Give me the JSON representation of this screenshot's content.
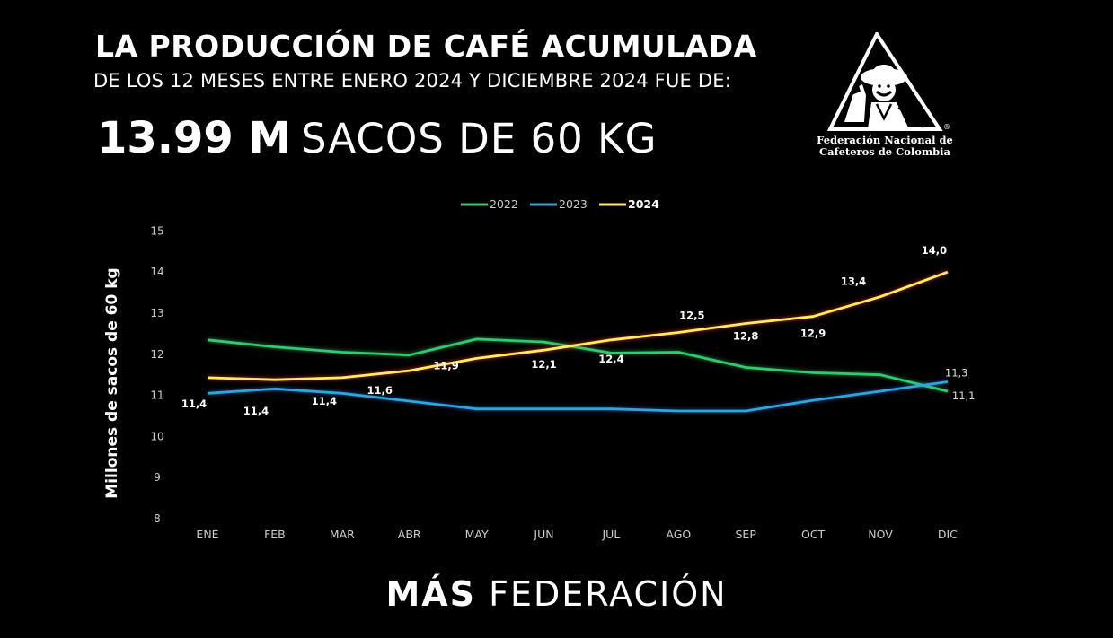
{
  "header": {
    "title": "LA PRODUCCIÓN DE CAFÉ ACUMULADA",
    "subtitle": "DE LOS 12 MESES ENTRE ENERO 2024 Y DICIEMBRE 2024 FUE DE:",
    "big_value": "13.99 M",
    "big_unit": "SACOS DE 60 KG"
  },
  "logo": {
    "line1": "Federación Nacional de",
    "line2": "Cafeteros de Colombia",
    "mark": "®"
  },
  "footer": {
    "bold": "MÁS",
    "light": "FEDERACIÓN"
  },
  "colors": {
    "2022": "#2ecc71",
    "2023": "#2aa7e0",
    "2024": "#ffee58",
    "background": "#000000"
  },
  "chart_data": {
    "type": "line",
    "ylabel": "Millones de sacos de 60 kg",
    "ylim": [
      8,
      15
    ],
    "yticks": [
      8,
      9,
      10,
      11,
      12,
      13,
      14,
      15
    ],
    "categories": [
      "ENE",
      "FEB",
      "MAR",
      "ABR",
      "MAY",
      "JUN",
      "JUL",
      "AGO",
      "SEP",
      "OCT",
      "NOV",
      "DIC"
    ],
    "legend_position": "top-center",
    "grid": false,
    "series": [
      {
        "name": "2022",
        "values": [
          12.35,
          12.18,
          12.05,
          11.98,
          12.37,
          12.3,
          12.03,
          12.05,
          11.68,
          11.55,
          11.5,
          11.1
        ],
        "labels": [
          "",
          "",
          "",
          "",
          "",
          "",
          "",
          "",
          "",
          "",
          "",
          "11,1"
        ]
      },
      {
        "name": "2023",
        "values": [
          11.05,
          11.16,
          11.05,
          10.86,
          10.67,
          10.67,
          10.67,
          10.62,
          10.62,
          10.88,
          11.1,
          11.33
        ],
        "labels": [
          "",
          "",
          "",
          "",
          "",
          "",
          "",
          "",
          "",
          "",
          "",
          "11,3"
        ]
      },
      {
        "name": "2024",
        "values": [
          11.43,
          11.38,
          11.43,
          11.6,
          11.9,
          12.1,
          12.35,
          12.53,
          12.75,
          12.92,
          13.4,
          14.0
        ],
        "labels": [
          "11,4",
          "11,4",
          "11,4",
          "11,6",
          "11,9",
          "12,1",
          "12,4",
          "12,5",
          "12,8",
          "12,9",
          "13,4",
          "14,0"
        ]
      }
    ]
  }
}
